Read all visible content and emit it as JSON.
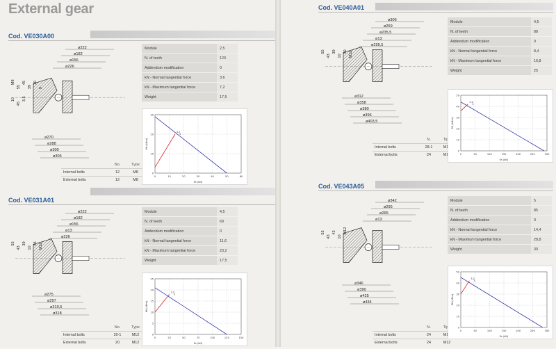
{
  "title": "External gear",
  "units": {
    "load_axis": "Fa (kN)",
    "moment_axis": "Mt (kNm)"
  },
  "products": [
    {
      "code": "Cod. VE030A00",
      "specs": [
        {
          "label": "Module",
          "value": "2,5"
        },
        {
          "label": "N. of teeth",
          "value": "120"
        },
        {
          "label": "Addendum modification",
          "value": "0"
        },
        {
          "label": "kN - Normal tangential force",
          "value": "3,6"
        },
        {
          "label": "kN - Maximum tangential force",
          "value": "7,2"
        },
        {
          "label": "Weight",
          "value": "17,5"
        }
      ],
      "bolts": {
        "col_no": "No.",
        "col_type": "Type",
        "rows": [
          {
            "label": "Internal bolts",
            "no": "12",
            "type": "M8"
          },
          {
            "label": "External bolts",
            "no": "12",
            "type": "M8"
          }
        ]
      },
      "dims": [
        "ø222",
        "ø182",
        "ø156",
        "M8",
        "ø226",
        "ø270",
        "ø288",
        "ø300",
        "ø305",
        "55",
        "45",
        "39",
        "10",
        "9",
        "10",
        "45",
        "3,5"
      ],
      "chart_data": {
        "type": "line",
        "x_ticks": [
          "0",
          "10",
          "20",
          "30",
          "40",
          "50",
          "60"
        ],
        "y_ticks": [
          "0",
          "10",
          "20",
          "30"
        ],
        "xlim": [
          0,
          60
        ],
        "ylim": [
          0,
          30
        ],
        "xlabel": "Fa (kN)",
        "ylabel": "Mt (kNm)",
        "labels": [
          "3.2",
          "3"
        ],
        "series": [
          {
            "color": "#3a3aa8",
            "points": [
              [
                0,
                29
              ],
              [
                50,
                0
              ]
            ]
          },
          {
            "color": "#e02020",
            "points": [
              [
                0,
                3
              ],
              [
                14,
                20
              ]
            ]
          }
        ]
      }
    },
    {
      "code": "Cod. VE031A01",
      "specs": [
        {
          "label": "Module",
          "value": "4,5"
        },
        {
          "label": "N. of teeth",
          "value": "69"
        },
        {
          "label": "Addendum modification",
          "value": "0"
        },
        {
          "label": "kN - Normal tangential force",
          "value": "11,6"
        },
        {
          "label": "kN - Maximum tangential force",
          "value": "23,2"
        },
        {
          "label": "Weight",
          "value": "17,5"
        }
      ],
      "bolts": {
        "col_no": "No.",
        "col_type": "Type",
        "rows": [
          {
            "label": "Internal bolts",
            "no": "20-1",
            "type": "M12"
          },
          {
            "label": "External bolts",
            "no": "20",
            "type": "M12"
          }
        ]
      },
      "dims": [
        "ø222",
        "ø182",
        "ø156",
        "ø13",
        "ø226",
        "ø275",
        "ø297",
        "ø310,5",
        "ø318",
        "55",
        "43",
        "39",
        "10",
        "45",
        "M12"
      ],
      "chart_data": {
        "type": "line",
        "x_ticks": [
          "0",
          "25",
          "50",
          "75",
          "100",
          "125",
          "150"
        ],
        "y_ticks": [
          "0",
          "5",
          "10",
          "15",
          "20",
          "25"
        ],
        "xlim": [
          0,
          150
        ],
        "ylim": [
          0,
          25
        ],
        "xlabel": "Fa (kN)",
        "ylabel": "Mt (kNm)",
        "labels": [
          "3.2",
          "3"
        ],
        "series": [
          {
            "color": "#3a3aa8",
            "points": [
              [
                0,
                21
              ],
              [
                125,
                0
              ]
            ]
          },
          {
            "color": "#e02020",
            "points": [
              [
                0,
                10
              ],
              [
                25,
                18
              ]
            ]
          }
        ]
      }
    },
    {
      "code": "Cod. VE040A01",
      "specs": [
        {
          "label": "Module",
          "value": "4,5"
        },
        {
          "label": "N. of teeth",
          "value": "88"
        },
        {
          "label": "Addendum modification",
          "value": "0"
        },
        {
          "label": "kN - Normal tangential force",
          "value": "8,4"
        },
        {
          "label": "kN - Maximum tangential force",
          "value": "16,8"
        },
        {
          "label": "Weight",
          "value": "25"
        }
      ],
      "bolts": {
        "col_no": "N.",
        "col_type": "Tipo",
        "rows": [
          {
            "label": "Internal bolts",
            "no": "28-1",
            "type": "M12"
          },
          {
            "label": "External bolts",
            "no": "24",
            "type": "M12"
          }
        ]
      },
      "dims": [
        "ø306",
        "ø259",
        "ø235,5",
        "ø13",
        "ø295,5",
        "ø312",
        "ø358",
        "ø380",
        "ø396",
        "ø403,5",
        "55",
        "43",
        "39",
        "10",
        "10",
        "M12"
      ],
      "chart_data": {
        "type": "line",
        "x_ticks": [
          "0",
          "50",
          "100",
          "150",
          "200",
          "250",
          "300"
        ],
        "y_ticks": [
          "0",
          "10",
          "20",
          "30",
          "40",
          "50"
        ],
        "xlim": [
          0,
          300
        ],
        "ylim": [
          0,
          50
        ],
        "xlabel": "Fa (kN)",
        "ylabel": "Mt (kNm)",
        "labels": [
          "3.2",
          "3"
        ],
        "series": [
          {
            "color": "#3a3aa8",
            "points": [
              [
                0,
                44
              ],
              [
                290,
                0
              ]
            ]
          },
          {
            "color": "#e02020",
            "points": [
              [
                0,
                36
              ],
              [
                25,
                42
              ]
            ]
          }
        ]
      }
    },
    {
      "code": "Cod. VE043A05",
      "specs": [
        {
          "label": "Module",
          "value": "5"
        },
        {
          "label": "N. of teeth",
          "value": "85"
        },
        {
          "label": "Addendum modification",
          "value": "0"
        },
        {
          "label": "kN - Normal tangential force",
          "value": "14,4"
        },
        {
          "label": "kN - Maximum tangential force",
          "value": "28,8"
        },
        {
          "label": "Weight",
          "value": "30"
        }
      ],
      "bolts": {
        "col_no": "N.",
        "col_type": "Tipo",
        "rows": [
          {
            "label": "Internal bolts",
            "no": "24",
            "type": "M12"
          },
          {
            "label": "External bolts",
            "no": "24",
            "type": "M12"
          }
        ]
      },
      "dims": [
        "ø342",
        "ø295",
        "ø265",
        "ø13",
        "ø346",
        "ø390",
        "ø425",
        "ø434",
        "55",
        "43",
        "43",
        "10",
        "M12"
      ],
      "chart_data": {
        "type": "line",
        "x_ticks": [
          "0",
          "50",
          "100",
          "150",
          "200",
          "250",
          "300"
        ],
        "y_ticks": [
          "0",
          "10",
          "20",
          "30",
          "40",
          "50"
        ],
        "xlim": [
          0,
          300
        ],
        "ylim": [
          0,
          50
        ],
        "xlabel": "Fa (kN)",
        "ylabel": "Mt (kNm)",
        "labels": [
          "3.2",
          "3"
        ],
        "series": [
          {
            "color": "#3a3aa8",
            "points": [
              [
                0,
                45
              ],
              [
                285,
                0
              ]
            ]
          },
          {
            "color": "#e02020",
            "points": [
              [
                0,
                30
              ],
              [
                30,
                42
              ]
            ]
          }
        ]
      }
    }
  ]
}
